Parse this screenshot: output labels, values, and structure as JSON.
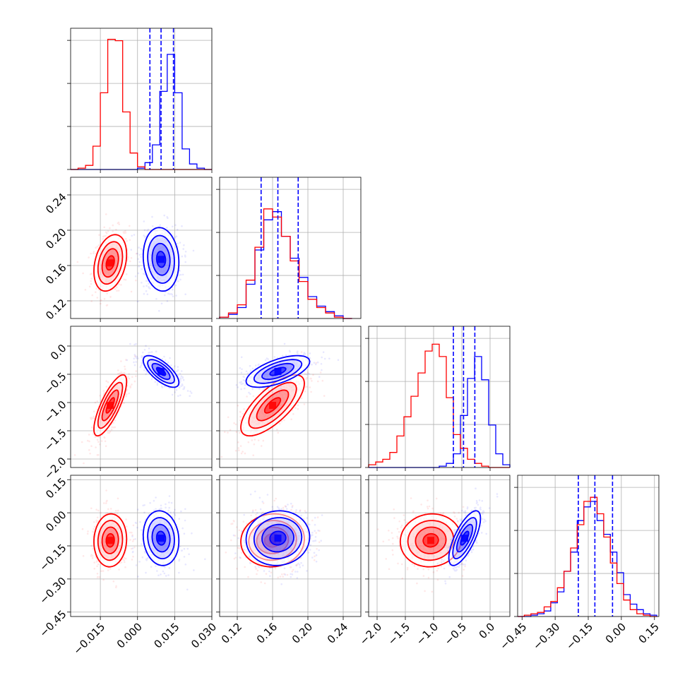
{
  "colors": {
    "red": "#ff0000",
    "blue": "#0000ff",
    "grid": "#b0b0b0"
  },
  "chart_data": {
    "type": "corner",
    "title": "",
    "grid": true,
    "n_params": 4,
    "series": [
      {
        "name": "",
        "color": "#ff0000"
      },
      {
        "name": "",
        "color": "#0000ff"
      }
    ],
    "params": [
      {
        "range": [
          -0.027,
          0.03
        ],
        "ticks": [
          -0.015,
          0.0,
          0.015,
          0.03
        ],
        "tick_labels": [
          "−0.015",
          "0.000",
          "0.015",
          "0.030"
        ],
        "quantiles_blue": [
          0.005,
          0.0095,
          0.0145
        ],
        "hist_edges": [
          -0.027,
          -0.024,
          -0.021,
          -0.018,
          -0.015,
          -0.012,
          -0.009,
          -0.006,
          -0.003,
          0.0,
          0.003,
          0.006,
          0.009,
          0.012,
          0.015,
          0.018,
          0.021,
          0.024,
          0.027,
          0.03
        ],
        "hist_red": [
          0,
          0.01,
          0.03,
          0.17,
          0.56,
          0.95,
          0.94,
          0.42,
          0.12,
          0.02,
          0,
          0,
          0,
          0,
          0,
          0,
          0,
          0,
          0
        ],
        "hist_blue": [
          0,
          0,
          0,
          0,
          0,
          0,
          0,
          0,
          0,
          0.01,
          0.05,
          0.18,
          0.57,
          0.84,
          0.56,
          0.15,
          0.04,
          0.01,
          0
        ]
      },
      {
        "range": [
          0.1,
          0.26
        ],
        "ticks": [
          0.12,
          0.16,
          0.2,
          0.24
        ],
        "tick_labels": [
          "0.12",
          "0.16",
          "0.20",
          "0.24"
        ],
        "quantiles_blue": [
          0.147,
          0.166,
          0.189
        ],
        "hist_edges": [
          0.1,
          0.11,
          0.12,
          0.13,
          0.14,
          0.15,
          0.16,
          0.17,
          0.18,
          0.19,
          0.2,
          0.21,
          0.22,
          0.23,
          0.24,
          0.25
        ],
        "hist_red": [
          0.01,
          0.04,
          0.1,
          0.28,
          0.52,
          0.8,
          0.74,
          0.6,
          0.42,
          0.27,
          0.14,
          0.08,
          0.04,
          0.01,
          0
        ],
        "hist_blue": [
          0.01,
          0.03,
          0.08,
          0.25,
          0.5,
          0.72,
          0.78,
          0.6,
          0.44,
          0.3,
          0.16,
          0.09,
          0.05,
          0.02,
          0
        ]
      },
      {
        "range": [
          -2.15,
          0.35
        ],
        "ticks": [
          -2.0,
          -1.5,
          -1.0,
          -0.5,
          0.0
        ],
        "tick_labels": [
          "−2.0",
          "−1.5",
          "−1.0",
          "−0.5",
          "0.0"
        ],
        "quantiles_blue": [
          -0.65,
          -0.47,
          -0.27
        ],
        "hist_edges": [
          -2.15,
          -2.025,
          -1.9,
          -1.775,
          -1.65,
          -1.525,
          -1.4,
          -1.275,
          -1.15,
          -1.025,
          -0.9,
          -0.775,
          -0.65,
          -0.525,
          -0.4,
          -0.275,
          -0.15,
          -0.025,
          0.1,
          0.225,
          0.35
        ],
        "hist_red": [
          0.02,
          0.04,
          0.06,
          0.11,
          0.23,
          0.37,
          0.52,
          0.69,
          0.85,
          0.9,
          0.81,
          0.51,
          0.24,
          0.14,
          0.06,
          0.03,
          0.01,
          0,
          0,
          0
        ],
        "hist_blue": [
          0,
          0,
          0,
          0,
          0,
          0,
          0,
          0,
          0,
          0,
          0.01,
          0.03,
          0.1,
          0.38,
          0.65,
          0.81,
          0.64,
          0.31,
          0.1,
          0.02
        ]
      },
      {
        "range": [
          -0.47,
          0.17
        ],
        "ticks": [
          -0.45,
          -0.3,
          -0.15,
          0.0,
          0.15
        ],
        "tick_labels": [
          "−0.45",
          "−0.30",
          "−0.15",
          "0.00",
          "0.15"
        ],
        "quantiles_blue": [
          -0.195,
          -0.12,
          -0.04
        ],
        "hist_edges": [
          -0.47,
          -0.44,
          -0.41,
          -0.38,
          -0.35,
          -0.32,
          -0.29,
          -0.26,
          -0.23,
          -0.2,
          -0.17,
          -0.14,
          -0.11,
          -0.08,
          -0.05,
          -0.02,
          0.01,
          0.04,
          0.07,
          0.1,
          0.13,
          0.16
        ],
        "hist_red": [
          0,
          0.01,
          0.02,
          0.03,
          0.07,
          0.11,
          0.21,
          0.33,
          0.5,
          0.67,
          0.84,
          0.87,
          0.75,
          0.58,
          0.39,
          0.24,
          0.12,
          0.05,
          0.02,
          0.01,
          0
        ],
        "hist_blue": [
          0,
          0,
          0.01,
          0.02,
          0.04,
          0.1,
          0.18,
          0.33,
          0.47,
          0.7,
          0.8,
          0.84,
          0.7,
          0.6,
          0.47,
          0.32,
          0.16,
          0.09,
          0.05,
          0.02,
          0.01
        ]
      }
    ],
    "blobs": [
      {
        "pair": [
          1,
          0
        ],
        "red": {
          "mean": [
            -0.011,
            0.163
          ],
          "sd": [
            0.0033,
            0.016
          ],
          "rho": 0.3
        },
        "blue": {
          "mean": [
            0.0095,
            0.167
          ],
          "sd": [
            0.0036,
            0.018
          ],
          "rho": -0.1
        }
      },
      {
        "pair": [
          2,
          0
        ],
        "red": {
          "mean": [
            -0.011,
            -1.05
          ],
          "sd": [
            0.0033,
            0.27
          ],
          "rho": 0.78
        },
        "blue": {
          "mean": [
            0.0095,
            -0.45
          ],
          "sd": [
            0.0036,
            0.14
          ],
          "rho": -0.7
        }
      },
      {
        "pair": [
          2,
          1
        ],
        "red": {
          "mean": [
            0.16,
            -1.05
          ],
          "sd": [
            0.018,
            0.27
          ],
          "rho": 0.72
        },
        "blue": {
          "mean": [
            0.166,
            -0.45
          ],
          "sd": [
            0.018,
            0.14
          ],
          "rho": 0.62
        }
      },
      {
        "pair": [
          3,
          0
        ],
        "red": {
          "mean": [
            -0.011,
            -0.125
          ],
          "sd": [
            0.0033,
            0.06
          ],
          "rho": 0.05
        },
        "blue": {
          "mean": [
            0.0095,
            -0.115
          ],
          "sd": [
            0.0036,
            0.062
          ],
          "rho": -0.1
        }
      },
      {
        "pair": [
          3,
          1
        ],
        "red": {
          "mean": [
            0.16,
            -0.125
          ],
          "sd": [
            0.018,
            0.06
          ],
          "rho": 0.05
        },
        "blue": {
          "mean": [
            0.166,
            -0.115
          ],
          "sd": [
            0.018,
            0.062
          ],
          "rho": 0.05
        }
      },
      {
        "pair": [
          3,
          2
        ],
        "red": {
          "mean": [
            -1.05,
            -0.125
          ],
          "sd": [
            0.27,
            0.06
          ],
          "rho": 0.05
        },
        "blue": {
          "mean": [
            -0.45,
            -0.115
          ],
          "sd": [
            0.14,
            0.062
          ],
          "rho": 0.72
        }
      }
    ]
  }
}
